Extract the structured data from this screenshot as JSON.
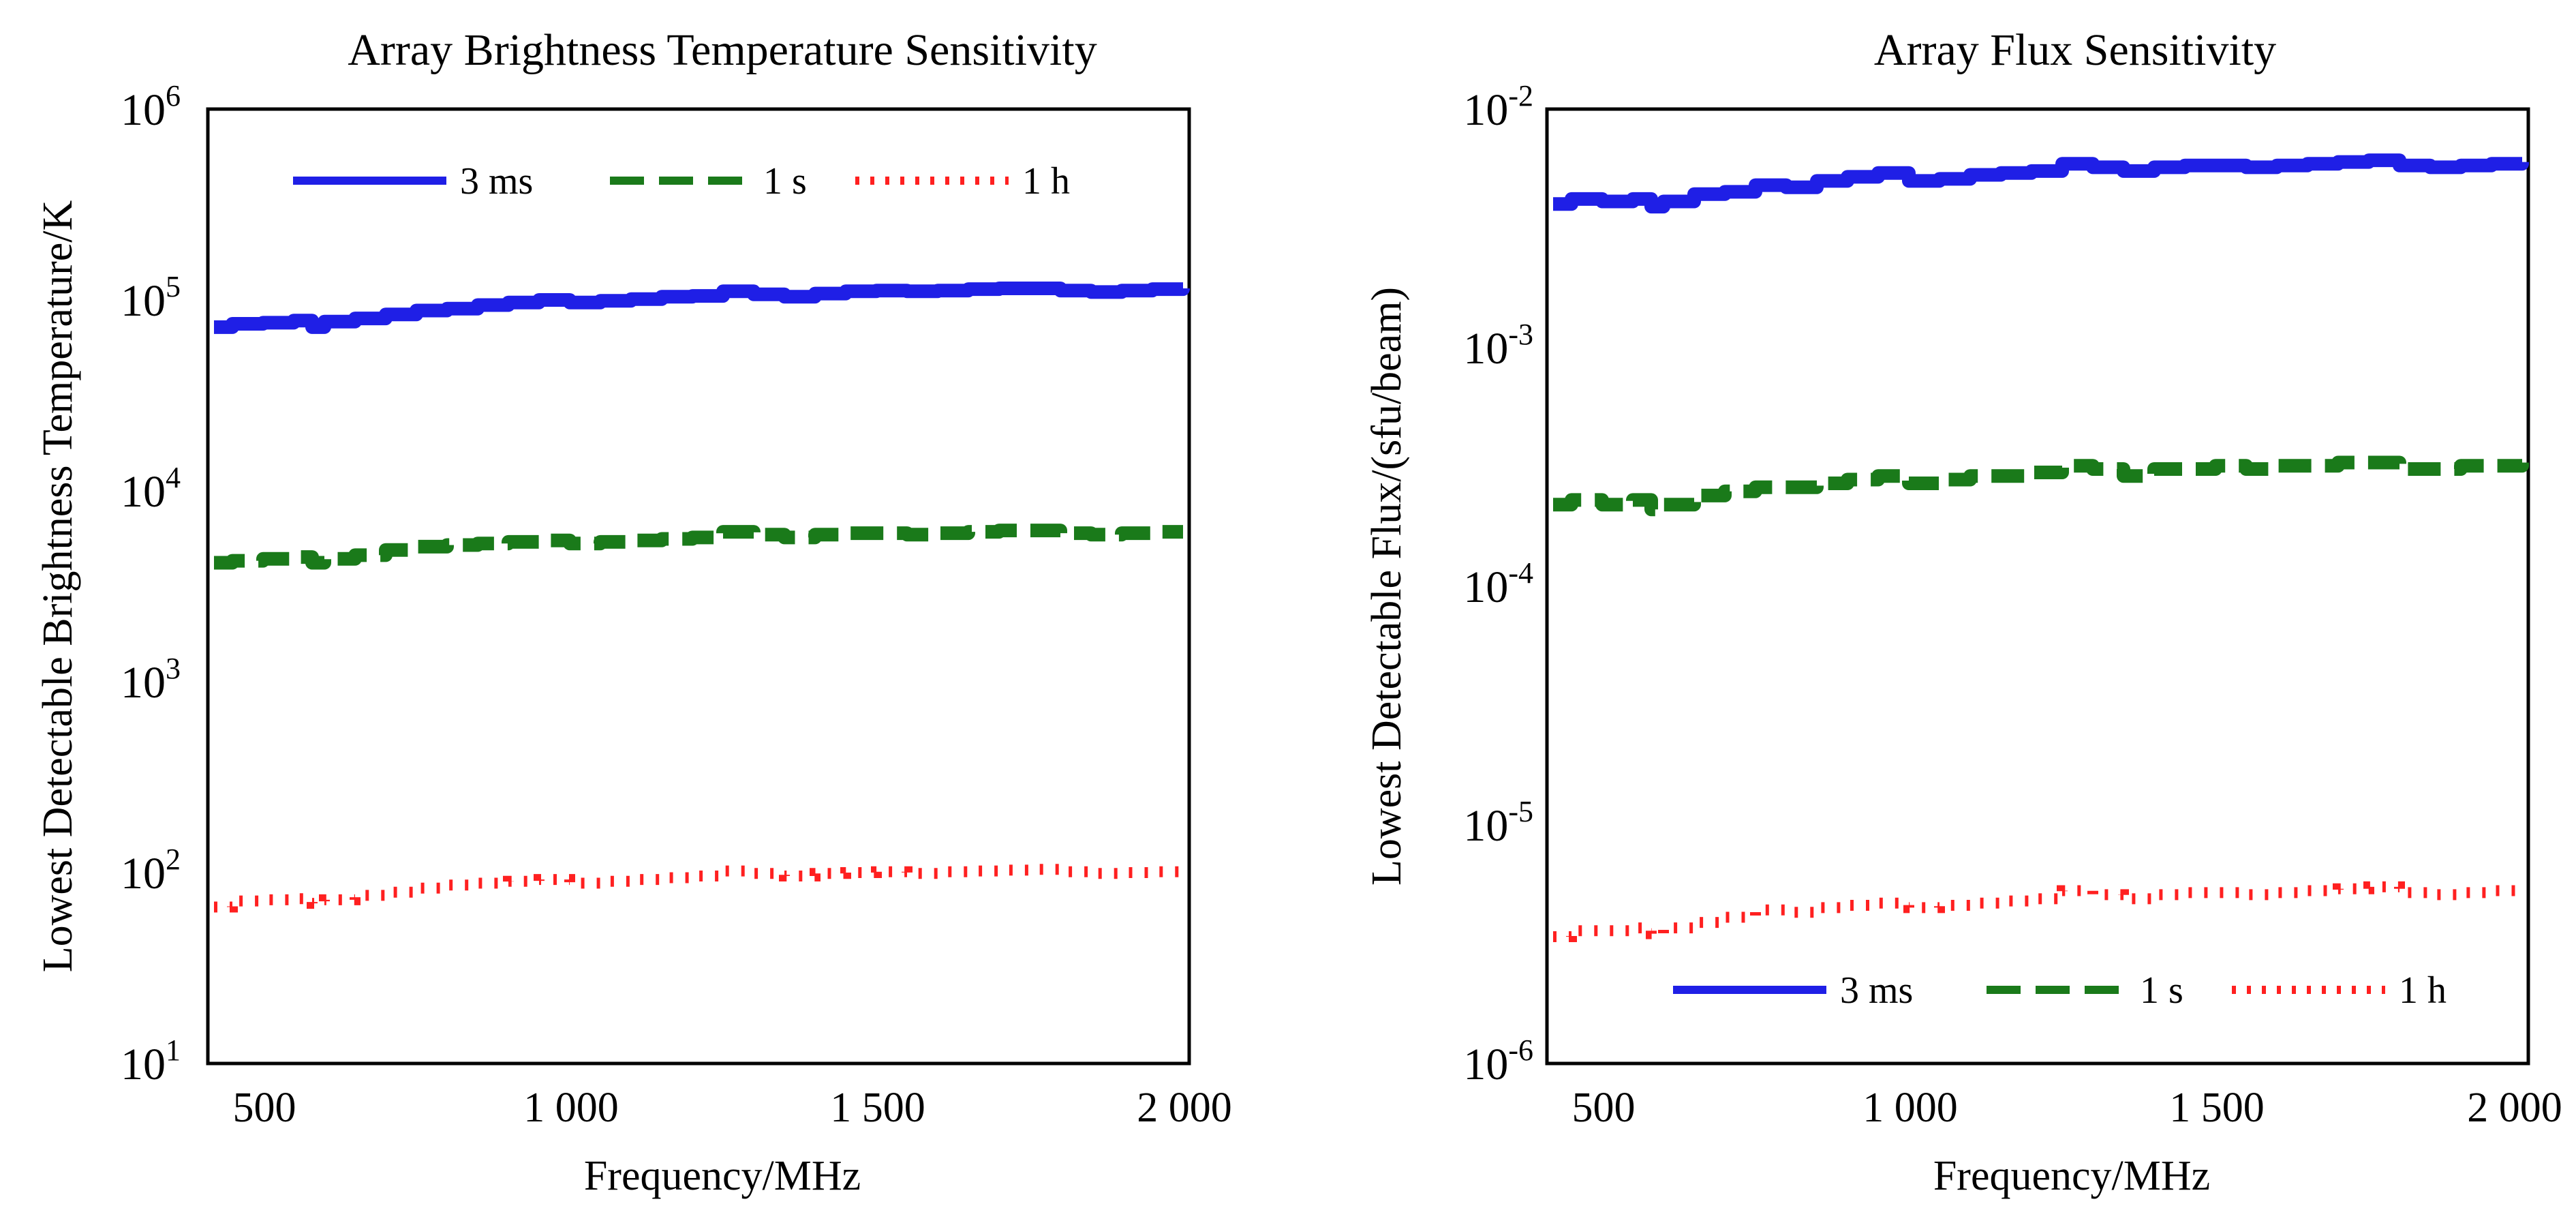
{
  "chart_data": [
    {
      "type": "line",
      "title": "Array Brightness Temperature Sensitivity",
      "xlabel": "Frequency/MHz",
      "ylabel": "Lowest Detectable Brightness Temperature/K",
      "yscale": "log",
      "xlim": [
        410,
        2010
      ],
      "ylim": [
        10,
        1000000
      ],
      "xticks": [
        500,
        1000,
        1500,
        2000
      ],
      "xtick_labels": [
        "500",
        "1 000",
        "1 500",
        "2 000"
      ],
      "yticks": [
        10,
        100,
        1000,
        10000,
        100000,
        1000000
      ],
      "ytick_labels": [
        {
          "base": "10",
          "exp": "1"
        },
        {
          "base": "10",
          "exp": "2"
        },
        {
          "base": "10",
          "exp": "3"
        },
        {
          "base": "10",
          "exp": "4"
        },
        {
          "base": "10",
          "exp": "5"
        },
        {
          "base": "10",
          "exp": "6"
        }
      ],
      "grid": false,
      "legend_position": "top",
      "x": [
        420,
        450,
        500,
        550,
        580,
        600,
        650,
        700,
        750,
        800,
        850,
        900,
        950,
        1000,
        1050,
        1100,
        1150,
        1200,
        1250,
        1300,
        1350,
        1400,
        1450,
        1500,
        1550,
        1600,
        1650,
        1700,
        1750,
        1800,
        1850,
        1900,
        1950,
        2000
      ],
      "series": [
        {
          "name": "3 ms",
          "color": "#1f1fe6",
          "style": "solid",
          "values": [
            72000,
            75000,
            76000,
            78000,
            72000,
            77000,
            80000,
            84000,
            88000,
            90000,
            94000,
            97000,
            100000,
            97000,
            99000,
            101000,
            104000,
            105000,
            111000,
            107000,
            104000,
            108000,
            111000,
            112000,
            111000,
            112000,
            114000,
            115000,
            115000,
            112000,
            110000,
            112000,
            114000,
            115000
          ]
        },
        {
          "name": "1 s",
          "color": "#1a7a1a",
          "style": "dashed",
          "values": [
            4200,
            4300,
            4400,
            4500,
            4200,
            4400,
            4600,
            4900,
            5100,
            5200,
            5300,
            5400,
            5500,
            5300,
            5400,
            5500,
            5600,
            5700,
            6100,
            5900,
            5700,
            5900,
            6000,
            6000,
            5900,
            6000,
            6100,
            6200,
            6200,
            6000,
            5900,
            6000,
            6100,
            6100
          ]
        },
        {
          "name": "1 h",
          "color": "#ff2020",
          "style": "dotted",
          "values": [
            66,
            71,
            72,
            73,
            69,
            72,
            76,
            79,
            83,
            86,
            88,
            90,
            92,
            88,
            90,
            92,
            94,
            96,
            102,
            99,
            96,
            99,
            100,
            101,
            99,
            101,
            102,
            103,
            104,
            101,
            99,
            100,
            101,
            101
          ]
        }
      ]
    },
    {
      "type": "line",
      "title": "Array Flux Sensitivity",
      "xlabel": "Frequency/MHz",
      "ylabel": "Lowest Detectable Flux/(sfu/beam)",
      "yscale": "log",
      "xlim": [
        410,
        2010
      ],
      "ylim": [
        1e-06,
        0.01
      ],
      "xticks": [
        500,
        1000,
        1500,
        2000
      ],
      "xtick_labels": [
        "500",
        "1 000",
        "1 500",
        "2 000"
      ],
      "yticks": [
        1e-06,
        1e-05,
        0.0001,
        0.001,
        0.01
      ],
      "ytick_labels": [
        {
          "base": "10",
          "exp": "-6"
        },
        {
          "base": "10",
          "exp": "-5"
        },
        {
          "base": "10",
          "exp": "-4"
        },
        {
          "base": "10",
          "exp": "-3"
        },
        {
          "base": "10",
          "exp": "-2"
        }
      ],
      "grid": false,
      "legend_position": "bottom",
      "x": [
        420,
        450,
        500,
        550,
        580,
        600,
        650,
        700,
        750,
        800,
        850,
        900,
        950,
        1000,
        1050,
        1100,
        1150,
        1200,
        1250,
        1300,
        1350,
        1400,
        1450,
        1500,
        1550,
        1600,
        1650,
        1700,
        1750,
        1800,
        1850,
        1900,
        1950,
        2000
      ],
      "series": [
        {
          "name": "3 ms",
          "color": "#1f1fe6",
          "style": "solid",
          "values": [
            0.004,
            0.0042,
            0.0041,
            0.0042,
            0.0039,
            0.0041,
            0.0044,
            0.0045,
            0.0048,
            0.0047,
            0.005,
            0.0052,
            0.0054,
            0.005,
            0.0051,
            0.0053,
            0.0054,
            0.0055,
            0.0059,
            0.0057,
            0.0055,
            0.0057,
            0.0058,
            0.0058,
            0.0057,
            0.0058,
            0.0059,
            0.006,
            0.0061,
            0.0058,
            0.0057,
            0.0058,
            0.0059,
            0.006
          ]
        },
        {
          "name": "1 s",
          "color": "#1a7a1a",
          "style": "dashed",
          "values": [
            0.00022,
            0.00023,
            0.00022,
            0.00023,
            0.00021,
            0.00022,
            0.00024,
            0.00025,
            0.00026,
            0.00026,
            0.00027,
            0.00028,
            0.00029,
            0.00027,
            0.00028,
            0.00029,
            0.00029,
            0.0003,
            0.00032,
            0.00031,
            0.00029,
            0.00031,
            0.00031,
            0.00032,
            0.00031,
            0.00032,
            0.00032,
            0.00033,
            0.00033,
            0.00031,
            0.00031,
            0.00032,
            0.00032,
            0.00033
          ]
        },
        {
          "name": "1 h",
          "color": "#ff2020",
          "style": "dotted",
          "values": [
            3.4e-06,
            3.6e-06,
            3.6e-06,
            3.7e-06,
            3.5e-06,
            3.7e-06,
            3.9e-06,
            4.1e-06,
            4.4e-06,
            4.3e-06,
            4.5e-06,
            4.6e-06,
            4.7e-06,
            4.5e-06,
            4.6e-06,
            4.7e-06,
            4.8e-06,
            4.9e-06,
            5.3e-06,
            5.1e-06,
            4.9e-06,
            5.1e-06,
            5.2e-06,
            5.2e-06,
            5.1e-06,
            5.2e-06,
            5.3e-06,
            5.4e-06,
            5.5e-06,
            5.2e-06,
            5.1e-06,
            5.2e-06,
            5.3e-06,
            5.4e-06
          ]
        }
      ]
    }
  ]
}
